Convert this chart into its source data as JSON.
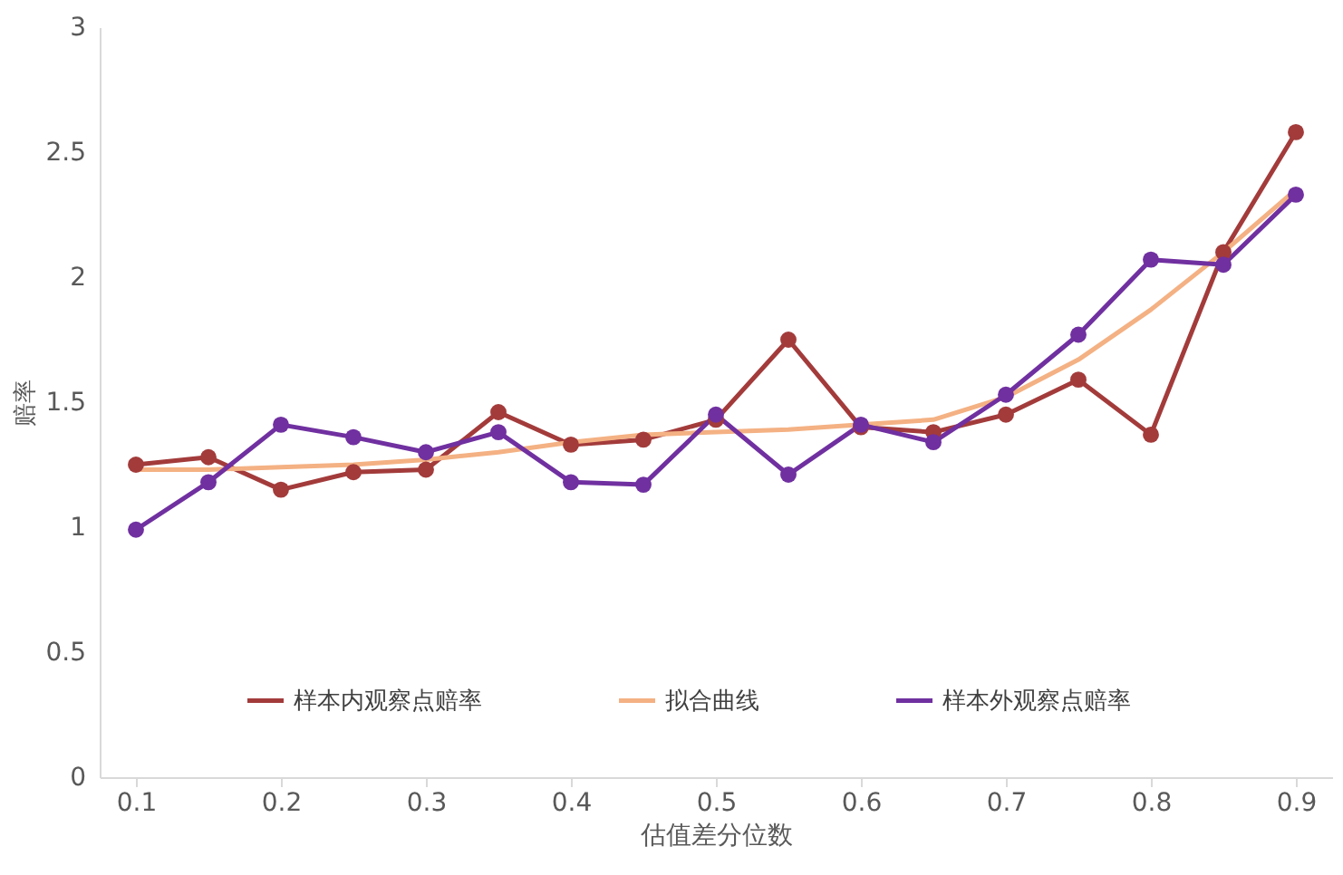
{
  "chart_data": {
    "type": "line",
    "xlabel": "估值差分位数",
    "ylabel": "赔率",
    "x": [
      0.1,
      0.15,
      0.2,
      0.25,
      0.3,
      0.35,
      0.4,
      0.45,
      0.5,
      0.55,
      0.6,
      0.65,
      0.7,
      0.75,
      0.8,
      0.85,
      0.9
    ],
    "series": [
      {
        "name": "样本内观察点赔率",
        "color": "#a33b3b",
        "marker": "circle",
        "values": [
          1.25,
          1.28,
          1.15,
          1.22,
          1.23,
          1.46,
          1.33,
          1.35,
          1.43,
          1.75,
          1.4,
          1.38,
          1.45,
          1.59,
          1.37,
          2.1,
          2.58
        ]
      },
      {
        "name": "拟合曲线",
        "color": "#f4b183",
        "marker": "none",
        "values": [
          1.23,
          1.23,
          1.24,
          1.25,
          1.27,
          1.3,
          1.34,
          1.37,
          1.38,
          1.39,
          1.41,
          1.43,
          1.52,
          1.67,
          1.87,
          2.1,
          2.35
        ]
      },
      {
        "name": "样本外观察点赔率",
        "color": "#7030a0",
        "marker": "circle",
        "values": [
          0.99,
          1.18,
          1.41,
          1.36,
          1.3,
          1.38,
          1.18,
          1.17,
          1.45,
          1.21,
          1.41,
          1.34,
          1.53,
          1.77,
          2.07,
          2.05,
          2.33
        ]
      }
    ],
    "xlim": [
      0.075,
      0.925
    ],
    "xticks": [
      0.1,
      0.2,
      0.3,
      0.4,
      0.5,
      0.6,
      0.7,
      0.8,
      0.9
    ],
    "ylim": [
      0,
      3
    ],
    "yticks": [
      0,
      0.5,
      1,
      1.5,
      2,
      2.5,
      3
    ],
    "grid": false,
    "legend": "bottom",
    "line_style": "solid"
  }
}
